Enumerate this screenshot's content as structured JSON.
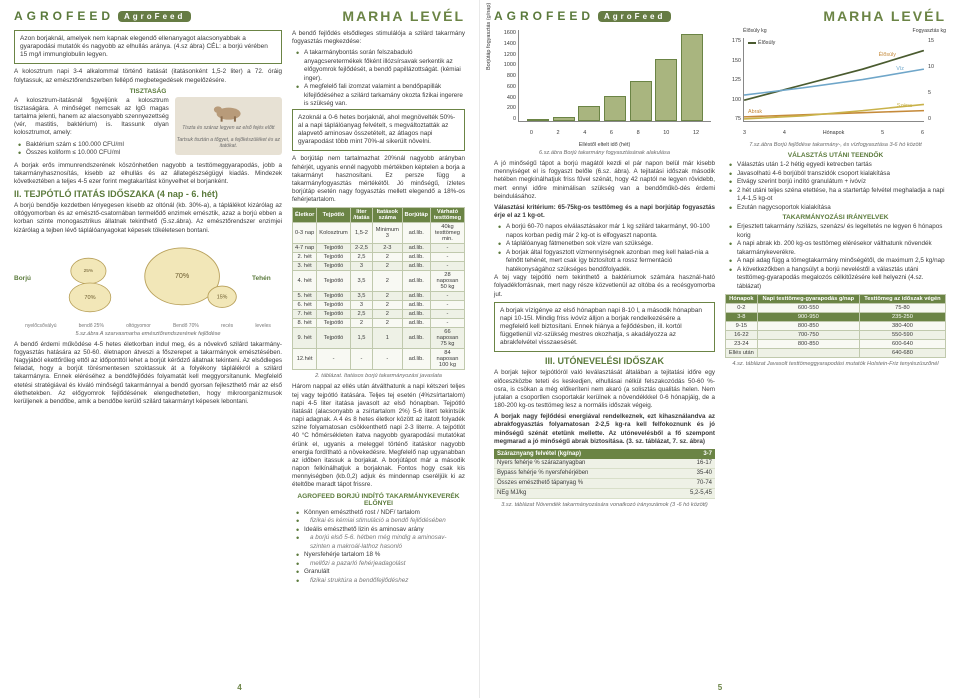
{
  "header": {
    "brand": "AGROFEED",
    "badge": "AgroFeed",
    "title": "MARHA LEVÉL"
  },
  "page_left_num": "4",
  "page_right_num": "5",
  "left": {
    "box1": "Azon borjaknál, amelyek nem kapnak elegendő ellenanyagot alacsonyabbak a gyarapodási mutatók és nagyobb az elhullás aránya. (4.sz ábra) CÉL: a borjú vérében 15 mg/l immunglobulin legyen.",
    "para1": "A kolosztrum napi 3-4 alkalommal történő itatását (itatásonként 1,5-2 liter) a 72. óráig folytassuk, az emésztőrendszerben fellépő megbetegedések megelőzésére.",
    "h_tiszt": "TISZTASÁG",
    "tiszt_p": "A kolosztrum-itatásnál figyeljünk a kolosztrum tisztaságára. A minőséget nemcsak az IgG magas tartalma jelenti, hanem az alacsonyabb szennyezettség (vér, mastitis, baktérium) is. Itassunk olyan kolosztrumot, amely:",
    "tiszt_li1": "Baktérium szám ≤ 100.000 CFU/ml",
    "tiszt_li2": "Összes koliform ≤ 10.000 CFU/ml",
    "tiszt_img_c1": "Tiszta és száraz legyen az első fejés előtt",
    "tiszt_img_c2": "Tartsuk tisztán a tőgyet, a fejőkészüléket és az itatókat.",
    "para_immun": "A borjak erős immunrendszerének köszönhetően nagyobb a testtömeggyarapodás, jobb a takarmányhasznosítás, kisebb az elhullás és az állategészségügyi kiadás. Mindezek következtében a teljes 4-5 ezer forint megtakarítást könyvelhet el borjanként.",
    "h_tejpotlo": "II. TEJPÓTLÓ ITATÁS IDŐSZAKA (4 nap - 6. hét)",
    "tejpotlo_p1": "A borjú bendője kezdetben lényegesen kisebb az oltónál (kb. 30%-a), a táplálékot kizárólag az oltógyomorban és az emésztő-csatornában termelődő enzimek emésztik, azaz a borjú ebben a korban szinte monogasztrikus állatnak tekinthető (5.sz.ábra). Az emésztőrendszer enzimjei kizárólag a tejben lévő táplálóanyagokat képesek tökéletesen bontani.",
    "cow_labels": {
      "borju": "Borjú",
      "tehen": "Tehén",
      "nyelo": "nyelőcsővályú",
      "bendo_b": "bendő 25%",
      "p70": "70%",
      "oltogy": "oltógyomor",
      "bendo_t": "Bendő 70%",
      "p15": "15%",
      "reces": "recés",
      "leveles": "leveles"
    },
    "cow_caption": "5.sz.ábra A szarvasmarha emésztőrendszerének fejlődése",
    "tejpotlo_p2": "A bendő érdemi működése 4-5 hetes életkorban indul meg, és a növekvő szilárd takarmány-fogyasztás hatására az 50-60. életnapon átveszi a főszerepet a takarmányok emésztésében. Nagyjából ekettőrűleg ettől az időponttól lehet a borjút kérődző állatnak tekinteni. Az elsődleges feladat, hogy a borjút törésmentesen szoktassuk át a folyékony táplálékról a szilárd takarmányra. Ennek eléréséhez a bendőfejlődés folyamatát kell meggyorsítanunk. Megfelelő etetési stratégiával és kiváló minőségű takarmánnyal a bendő gyorsan fejleszthető már az első élethetekben. Az előgyomrok fejlődésének elengedhetetlen, hogy mikroorganizmusok kerüljenek a bendőbe, amik a bendőbe kerülő szilárd takarmányt képesek lebontani.",
    "r_intro": "A bendő fejlődés elsődleges stimulálója a szilárd takarmány fogyasztás megkezdése:",
    "r_li1": "A takarmánybontás során felszabaduló anyagcseretermékek főként illózsírsavak serkentik az előgyomrok fejlődését, a bendő papillázottságát. (kémiai inger).",
    "r_li2": "A megfelelő fali izomzat valamint a bendőpapillák kifejlődéséhez a szilárd tarkamány okozta fizikai ingerere is szükség van.",
    "r_box": "Azoknál a 0-6 hetes borjaknál, ahol megnövelték 50%-al a napi táplálóanyag felvételt, s megváltoztatták az alapvető aminosav összetételt, az átlagos napi gyarapodást több mint 70%-al sikerült növelni.",
    "r_p_bortap": "A borjútáp nem tartalmazhat 20%nál nagyobb arányban fehérjét, ugyanis ennél nagyobb mértékben képtelen a borja a takarmányt hasznosítani. Ez persze függ a takarmányfogyasztás mértékétől. Jó minőségű, ízletes borjútáp esetén nagy fogyasztás mellett elegendő a 18%-os fehérjetartalom.",
    "table2": {
      "headers": [
        "Életkor",
        "Tejpótló",
        "liter /itatás",
        "Itatások száma",
        "Borjútáp",
        "Várható testtömeg"
      ],
      "rows": [
        [
          "0-3 nap",
          "Kolosztrum",
          "1,5-2",
          "Minimum 3",
          "ad.lib.",
          "40kg testtömeg min."
        ],
        [
          "4-7 nap",
          "Tejpótló",
          "2-2,5",
          "2-3",
          "ad.lib.",
          "-"
        ],
        [
          "2. hét",
          "Tejpótló",
          "2,5",
          "2",
          "ad.lib.",
          "-"
        ],
        [
          "3. hét",
          "Tejpótló",
          "3",
          "2",
          "ad.lib.",
          "-"
        ],
        [
          "4. hét",
          "Tejpótló",
          "3,5",
          "2",
          "ad.lib.",
          "28 naposan 50 kg"
        ],
        [
          "5. hét",
          "Tejpótló",
          "3,5",
          "2",
          "ad.lib.",
          "-"
        ],
        [
          "6. hét",
          "Tejpótló",
          "3",
          "2",
          "ad.lib.",
          "-"
        ],
        [
          "7. hét",
          "Tejpótló",
          "2,5",
          "2",
          "ad.lib.",
          "-"
        ],
        [
          "8. hét",
          "Tejpótló",
          "2",
          "2",
          "ad.lib.",
          "-"
        ],
        [
          "9. hét",
          "Tejpótló",
          "1,5",
          "1",
          "ad.lib.",
          "66 naposan 75 kg"
        ],
        [
          "12.hét",
          "-",
          "-",
          "-",
          "ad.lib.",
          "84 naposan 100 kg"
        ]
      ],
      "caption": "2. táblázat. Itatásos borjú takarmányozási javaslata"
    },
    "tej_p3": "Három nappal az ellés után átválthatunk a napi kétszeri teljes tej vagy tejpótló itatására. Teljes tej esetén (4%zsírtartalom) napi 4-5 liter itatása javasolt az első hónapban. Tejpótló itatását (alacsonyabb a zsírtartalom 2%) 5-6 litert tekintsük napi adagnak. A 4 és 8 hetes életkor között az itatott folyadék színe folyamatosan csökkenthető napi 2-3 literre. A tejpótlót 40 °C hőmérsékleten itatva nagyobb gyarapodási mutatókat érünk el, ugyanis a meleggel történő itatáskor nagyobb energia fordítható a növekedésre. Megfelelő nap ugyanabban az időben itassuk a borjakat. A borjútápot már a második napon felkínálhatjuk a borjaknak. Fontos hogy csak kis mennyiségben (kb.0,2) adjuk és mindennap cseréljük ki az ételtőbe maradt tápot frissre.",
    "h_inditokev": "AGROFEED BORJÚ INDÍTÓ TAKARMÁNYKEVERÉK ELŐNYEI",
    "ind_li": [
      "Könnyen emészthető rost / NDF/ tartalom",
      "fizikai és kémiai stimuláció a bendő fejlődésében",
      "Ideális emészthető lizin és aminosav arány",
      "a borjú első 5-6. hétben még mindig a aminosav-szinten a makroál-lathoz hasonló",
      "Nyersfehérje tartalom 18 %",
      "mellőzi a pazarló fehérjeadagolást",
      "Granulált",
      "fizikai struktúra a bendőfejlődéshez"
    ]
  },
  "right": {
    "chart1": {
      "type": "bar",
      "y_label": "Borjútáp fogyasztás (g/nap)",
      "y_ticks": [
        "1600",
        "1400",
        "1200",
        "1000",
        "800",
        "600",
        "400",
        "200",
        "0"
      ],
      "x_ticks": [
        "0",
        "2",
        "4",
        "6",
        "8",
        "10",
        "12"
      ],
      "x_label": "Elléstől eltelt idő (hét)",
      "caption": "6.sz.ábra Borjú takarmány fogyasztásának alakulása",
      "bar_color": "#a9b57f",
      "values_pct": [
        0,
        4,
        16,
        28,
        44,
        68,
        96
      ]
    },
    "p_joim": "A jó minőségű tápot a borjú magától kezdi el pár napon belül már kisebb mennyiséget el is fogyaszt belőle (6.sz. ábra). A tejitatási időszak második hetében megkínálhatjuk friss fűvel szénát, hogy 42 naptól ne legyen rövidebb, mert ennyi időre minimálisan szükség van a bendőműkö-dés érdemi beindulásához.",
    "bold_valaszt": "Választási kritérium: 65-75kg-os testtömeg és a napi borjútáp fogyasztás érje el az 1 kg-ot.",
    "li_valaszt": [
      "A borjú 60-70 napos elválasztásakor már 1 kg szilárd takarmányt, 90-100 napos korban pedig már 2 kg-ot is elfogyaszt naponta.",
      "A táplálóanyag fátmenetben sok vízre van szüksége.",
      "A borjak által fogyasztott vízmennyiségnek azonban meg kell halad-nia a felnőtt tehénét, mert csak így biztosított a rossz fermentáció hatékonyságához szükséges bendőfolyadék."
    ],
    "p_vagy": "A tej vagy tejpótló nem tekinthető a baktériumok számára használ-ható folyadékforrásnak, mert nagy része közvetlenül az oltóba és a recésgyomorba jut.",
    "box_vizj": "A borjak vízigénye az első hónapban napi 8-10 l, a második hónapban napi 10-15l. Mindig friss ivóvíz álljon a borjak rendelkezésére a megfelelő kell biztosítani. Ennek hiánya a fejlődésben, ill. kortól függetlenül víz-szükség mestres okozhatja, s akadályozza az abrakfelvétel visszaesését.",
    "h_uto": "III. UTÓNEVELÉSI IDŐSZAK",
    "p_uto1": "A borjak tejkor tejpótlóról való leválasztását általában a tejitatási időre egy előceszközbe teteti és keskedjen, elhullásai nélkül felszakozódás 50-60 %-osra, is csökan a még előkeríteni nem akaró (a solisztás qualitás helen. Nem jutalan a csoportlen csoportakár kerülnek a növendékkkel 0-6 hónapjáig, de a 180-200 kg-os testtömeg lesz a normális időszak végeig.",
    "p_uto_bold": "A borjak nagy fejlődési energiával rendelkeznek, ezt kihasználandva az abrakfogyasztás folyamatosan 2-2,5 kg-ra kell felfokoznunk és jó minőségű szénát etetünk mellette. Az utónevelésből a fő szempont megmarad a jó minőségű abrak biztosítása. (3. sz. táblázat, 7. sz. ábra)",
    "table3": {
      "h1": "Száraznyang felvétel (kg/nap)",
      "h2": "3-7",
      "rows": [
        [
          "Nyers fehérje % szárazanyagban",
          "16-17"
        ],
        [
          "Bypass fehérje % nyersfehérjében",
          "35-40"
        ],
        [
          "Összes emészthető tápanyag %",
          "70-74"
        ],
        [
          "NEg MJ/kg",
          "5,2-5,45"
        ]
      ],
      "caption": "3.sz. táblázat Növendék takarmányozására vonatkozó irányszámok (3 -6 hó között)"
    },
    "chart2": {
      "type": "line",
      "caption": "7.sz.ábra Borjú fejlődése takarmány-, és vízfogyasztása 3-6 hó között",
      "left_ticks": [
        "175",
        "150",
        "125",
        "100",
        "75"
      ],
      "right_ticks": [
        "15",
        "10",
        "5",
        "0"
      ],
      "x_ticks": [
        "3",
        "4",
        "Hónapok",
        "5",
        "6"
      ],
      "series": [
        {
          "name": "Élősúly",
          "color": "#4a5b2f"
        },
        {
          "name": "Víz",
          "color": "#6fa6c9"
        },
        {
          "name": "Abrak",
          "color": "#c58a3a"
        },
        {
          "name": "Széna",
          "color": "#c9b24a"
        }
      ],
      "left_label": "Élősúly kg",
      "right_label": "Fogyasztás kg"
    },
    "h_valut": "VÁLASZTÁS UTÁNI TEENDŐK",
    "valut_li": [
      "Választás után 1-2 hétig egyedi ketrecben tartás",
      "Javasolhatú 4-6 borjúból transzidók csoport kialakítása",
      "Etvágy szerint borjú indító granulátum + ivóvíz",
      "2 hét utáni teljes széna etettése, ha a startertáp felvétel meghaladja a napi 1,4-1,5 kg-ot",
      "Ezután nagycsoportok kialakítása"
    ],
    "h_takir": "TAKARMÁNYOZÁSI IRÁNYELVEK",
    "takir_li": [
      "Erjesztett takarmány /szilázs, szenázs/ és legeltetés ne legyen 6 hónapos korig",
      "A napi abrak kb. 200 kg-os testtömeg elérésekor válthatunk növendék takarmánykeverékre.",
      "A napi adag függ a tömegtakarmány minőségétől, de maximum 2,5 kg/nap",
      "A következőkben a hangsúlyt a borjú neveléstől a választás utáni testtömeg-gyarapodás megalozós célkitűzésére kell helyezni (4.sz. táblázat)"
    ],
    "table4": {
      "headers": [
        "Hónapok",
        "Napi testtömeg-gyarapodás g/nap",
        "Testtömeg az időszak végén"
      ],
      "rows": [
        [
          "0-2",
          "600-550",
          "75-80"
        ],
        [
          "3-8",
          "900-950",
          "235-250"
        ],
        [
          "9-15",
          "800-850",
          "380-400"
        ],
        [
          "16-22",
          "700-750",
          "550-590"
        ],
        [
          "23-24",
          "800-850",
          "600-640"
        ],
        [
          "Ellés után",
          "",
          "640-680"
        ]
      ],
      "caption": "4.sz. táblázat Javasolt testtömeggyarapodási mutatók Holstein-Friz tenyészüszőnél"
    }
  }
}
